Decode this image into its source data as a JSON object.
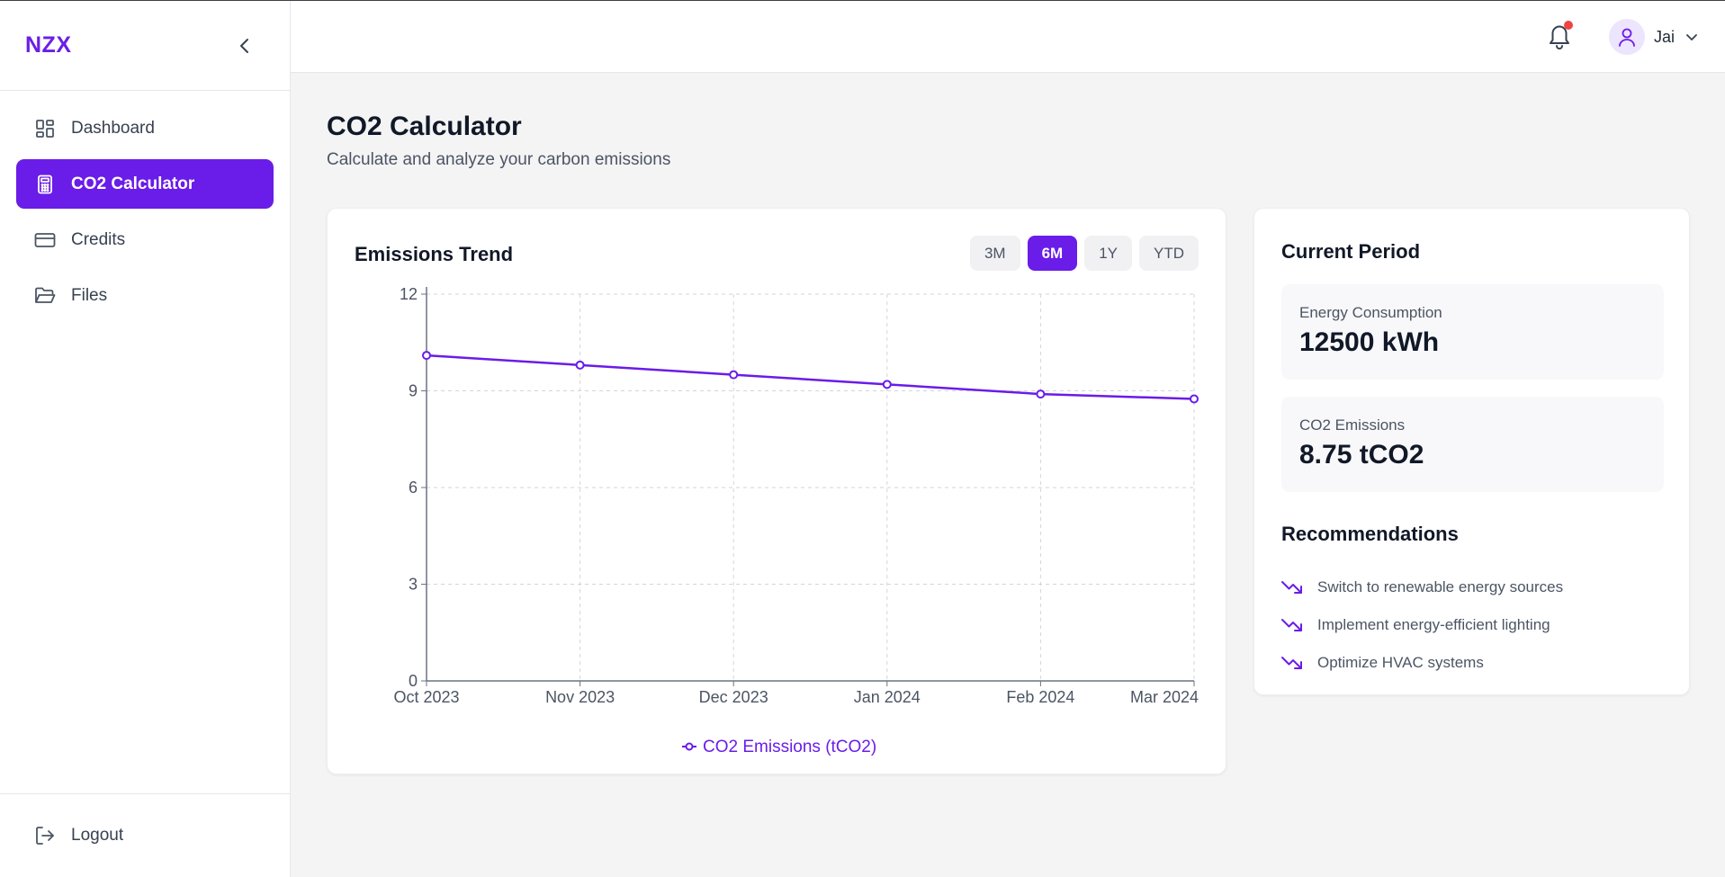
{
  "app": {
    "brand": "NZX"
  },
  "sidebar": {
    "items": [
      {
        "label": "Dashboard",
        "icon": "dashboard-icon"
      },
      {
        "label": "CO2 Calculator",
        "icon": "calculator-icon"
      },
      {
        "label": "Credits",
        "icon": "credit-card-icon"
      },
      {
        "label": "Files",
        "icon": "folder-icon"
      }
    ],
    "logout_label": "Logout"
  },
  "header": {
    "user_name": "Jai",
    "has_notification": true
  },
  "page": {
    "title": "CO2 Calculator",
    "subtitle": "Calculate and analyze your carbon emissions"
  },
  "trend": {
    "title": "Emissions Trend",
    "ranges": [
      "3M",
      "6M",
      "1Y",
      "YTD"
    ],
    "selected_range": "6M"
  },
  "chart_data": {
    "type": "line",
    "categories": [
      "Oct 2023",
      "Nov 2023",
      "Dec 2023",
      "Jan 2024",
      "Feb 2024",
      "Mar 2024"
    ],
    "series": [
      {
        "name": "CO2 Emissions (tCO2)",
        "values": [
          10.1,
          9.8,
          9.5,
          9.2,
          8.9,
          8.75
        ],
        "color": "#6a1ce8"
      }
    ],
    "ylim": [
      0,
      12
    ],
    "yticks": [
      0,
      3,
      6,
      9,
      12
    ],
    "grid": true,
    "legend": "bottom"
  },
  "current_period": {
    "title": "Current Period",
    "energy_label": "Energy Consumption",
    "energy_value": "12500 kWh",
    "co2_label": "CO2 Emissions",
    "co2_value": "8.75 tCO2"
  },
  "recommendations": {
    "title": "Recommendations",
    "items": [
      "Switch to renewable energy sources",
      "Implement energy-efficient lighting",
      "Optimize HVAC systems"
    ]
  },
  "colors": {
    "accent": "#6a1ce8",
    "notification": "#ef4444"
  }
}
